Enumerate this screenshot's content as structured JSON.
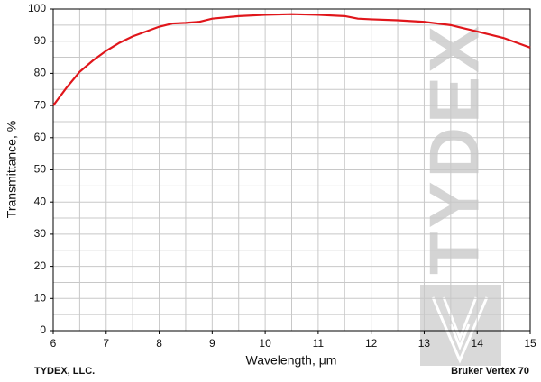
{
  "chart_data": {
    "type": "line",
    "x_label": "Wavelength, μm",
    "y_label": "Transmittance, %",
    "footer_left": "TYDEX, LLC.",
    "footer_right": "Bruker Vertex 70",
    "watermark": "TYDEX",
    "xlim": [
      6,
      15
    ],
    "ylim": [
      0,
      100
    ],
    "xticks": [
      6,
      7,
      8,
      9,
      10,
      11,
      12,
      13,
      14,
      15
    ],
    "yticks": [
      0,
      10,
      20,
      30,
      40,
      50,
      60,
      70,
      80,
      90,
      100
    ],
    "xminorticks": [
      6.5,
      7.5,
      8.5,
      9.5,
      10.5,
      11.5,
      12.5,
      13.5,
      14.5
    ],
    "yminorticks": [
      5,
      15,
      25,
      35,
      45,
      55,
      65,
      75,
      85,
      95
    ],
    "grid": true,
    "series": [
      {
        "color": "#e0161b",
        "x": [
          6,
          6.25,
          6.5,
          6.75,
          7,
          7.25,
          7.5,
          7.75,
          8,
          8.25,
          8.5,
          8.75,
          9,
          9.5,
          10,
          10.5,
          11,
          11.5,
          11.75,
          12,
          12.5,
          13,
          13.5,
          14,
          14.5,
          14.75,
          15
        ],
        "values": [
          70,
          75.5,
          80.5,
          84,
          87,
          89.5,
          91.5,
          93,
          94.5,
          95.5,
          95.7,
          96,
          97,
          97.8,
          98.2,
          98.4,
          98.2,
          97.8,
          97,
          96.8,
          96.5,
          96,
          95,
          93,
          91,
          89.5,
          88
        ]
      }
    ]
  }
}
